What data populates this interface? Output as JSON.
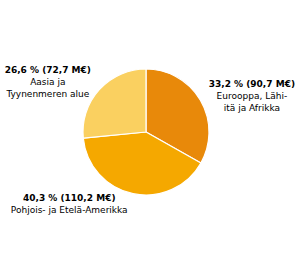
{
  "chart_data": {
    "type": "pie",
    "categories": [
      "Eurooppa, Lähi-\nitä ja Afrikka",
      "Pohjois- ja Etelä-Amerikka",
      "Aasia ja\nTyynenmeren alue"
    ],
    "values": [
      33.2,
      40.3,
      26.6
    ],
    "value_labels": [
      "33,2 % (90,7 M€)",
      "40,3 % (110,2 M€)",
      "26,6 % (72,7 M€)"
    ],
    "colors": [
      "#E8890A",
      "#F5A800",
      "#FAD060"
    ],
    "data_labels": true
  }
}
